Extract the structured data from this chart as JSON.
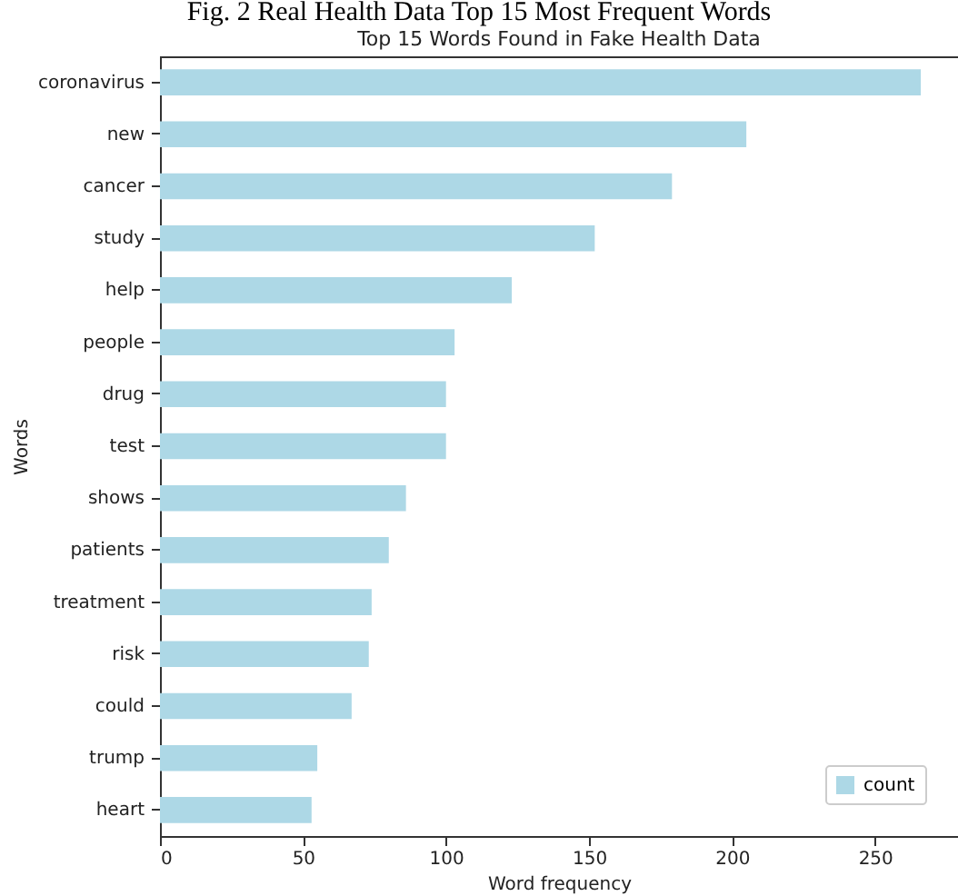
{
  "chart_data": {
    "type": "bar",
    "orientation": "horizontal",
    "title": "Top 15 Words Found in Fake Health Data",
    "xlabel": "Word frequency",
    "ylabel": "Words",
    "annotations": [
      "Fig. 2 Real Health Data Top 15 Most Frequent Words"
    ],
    "categories": [
      "coronavirus",
      "new",
      "cancer",
      "study",
      "help",
      "people",
      "drug",
      "test",
      "shows",
      "patients",
      "treatment",
      "risk",
      "could",
      "trump",
      "heart"
    ],
    "series": [
      {
        "name": "count",
        "color": "#add8e6",
        "values": [
          266,
          205,
          179,
          152,
          123,
          103,
          100,
          100,
          86,
          80,
          74,
          73,
          67,
          55,
          53
        ]
      }
    ],
    "xlim": [
      0,
      279
    ],
    "xticks": [
      0,
      50,
      100,
      150,
      200,
      250
    ],
    "legend": "bottom right",
    "grid": false
  }
}
